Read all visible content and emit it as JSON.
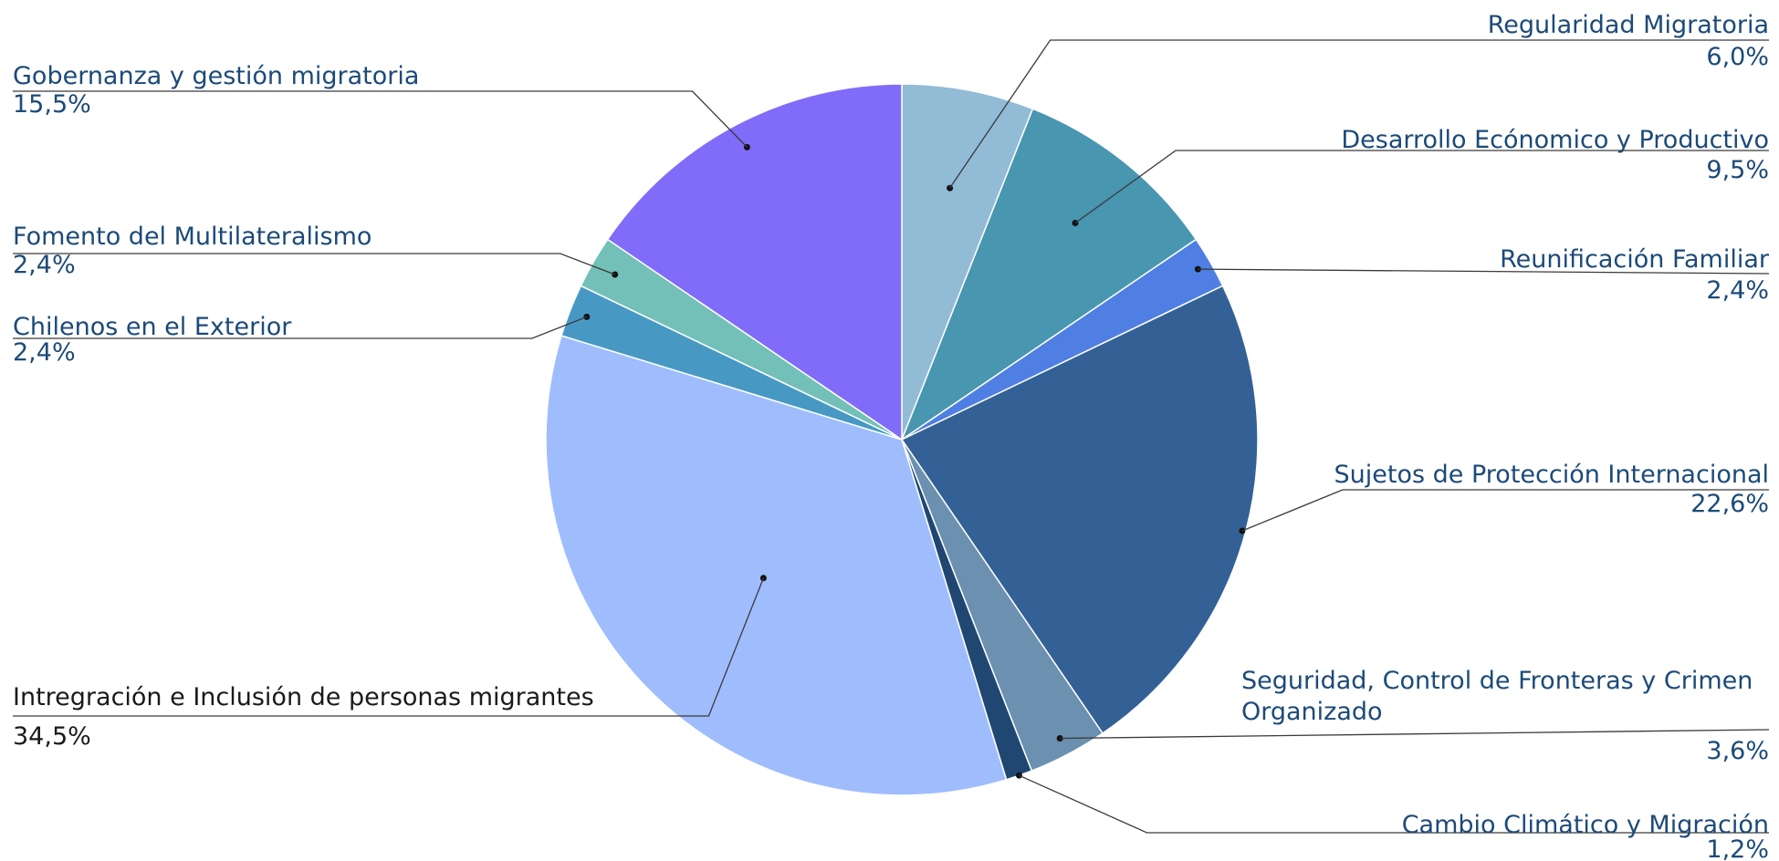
{
  "chart_data": {
    "type": "pie",
    "title": "",
    "start_angle_deg": 90,
    "direction": "clockwise",
    "slices": [
      {
        "label": "Regularidad Migratoria",
        "value": 6.0,
        "value_label": "6,0%",
        "color": "#92bbd6"
      },
      {
        "label": "Desarrollo Ecónomico y Productivo",
        "value": 9.5,
        "value_label": "9,5%",
        "color": "#4896b0"
      },
      {
        "label": "Reunificación Familiar",
        "value": 2.4,
        "value_label": "2,4%",
        "color": "#4f7fe3"
      },
      {
        "label": "Sujetos de Protección Internacional",
        "value": 22.6,
        "value_label": "22,6%",
        "color": "#346195"
      },
      {
        "label": "Seguridad, Control de Fronteras y Crimen Organizado",
        "value": 3.6,
        "value_label": "3,6%",
        "color": "#6b90b0"
      },
      {
        "label": "Cambio Climático y Migración",
        "value": 1.2,
        "value_label": "1,2%",
        "color": "#1f4771"
      },
      {
        "label": "Intregración e Inclusión de personas migrantes",
        "value": 34.5,
        "value_label": "34,5%",
        "color": "#9fbdfc"
      },
      {
        "label": "Chilenos en el Exterior",
        "value": 2.4,
        "value_label": "2,4%",
        "color": "#4799c4"
      },
      {
        "label": "Fomento del Multilateralismo",
        "value": 2.4,
        "value_label": "2,4%",
        "color": "#72c0b8"
      },
      {
        "label": "Gobernanza y gestión migratoria",
        "value": 15.5,
        "value_label": "15,5%",
        "color": "#816cf9"
      }
    ]
  }
}
